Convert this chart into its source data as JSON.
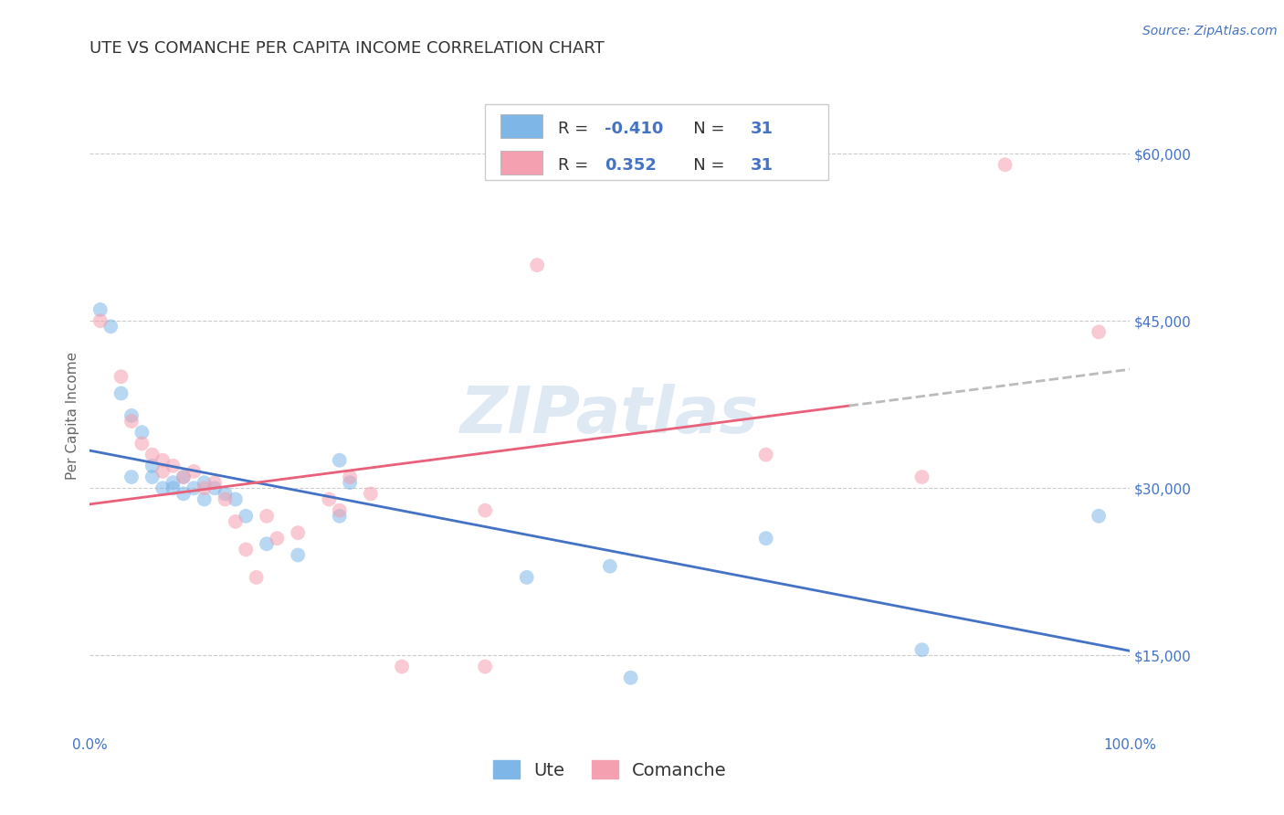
{
  "title": "UTE VS COMANCHE PER CAPITA INCOME CORRELATION CHART",
  "source": "Source: ZipAtlas.com",
  "ylabel": "Per Capita Income",
  "x_min": 0.0,
  "x_max": 1.0,
  "y_min": 8000,
  "y_max": 65000,
  "y_ticks": [
    15000,
    30000,
    45000,
    60000
  ],
  "y_tick_labels": [
    "$15,000",
    "$30,000",
    "$45,000",
    "$60,000"
  ],
  "x_tick_labels": [
    "0.0%",
    "100.0%"
  ],
  "legend_r_ute": "-0.410",
  "legend_r_comanche": "0.352",
  "legend_n": "31",
  "watermark": "ZIPatlas",
  "ute_color": "#7EB6E8",
  "comanche_color": "#F5A0B0",
  "ute_line_color": "#4472C4",
  "comanche_line_color": "#E8607A",
  "trend_line_ext_color": "#BBBBBB",
  "background_color": "#FFFFFF",
  "grid_color": "#CCCCCC",
  "ute_scatter": [
    [
      0.01,
      46000
    ],
    [
      0.02,
      44500
    ],
    [
      0.03,
      38500
    ],
    [
      0.04,
      36500
    ],
    [
      0.04,
      31000
    ],
    [
      0.05,
      35000
    ],
    [
      0.06,
      32000
    ],
    [
      0.06,
      31000
    ],
    [
      0.07,
      30000
    ],
    [
      0.08,
      30500
    ],
    [
      0.08,
      30000
    ],
    [
      0.09,
      31000
    ],
    [
      0.09,
      29500
    ],
    [
      0.1,
      30000
    ],
    [
      0.11,
      30500
    ],
    [
      0.11,
      29000
    ],
    [
      0.12,
      30000
    ],
    [
      0.13,
      29500
    ],
    [
      0.14,
      29000
    ],
    [
      0.15,
      27500
    ],
    [
      0.17,
      25000
    ],
    [
      0.2,
      24000
    ],
    [
      0.24,
      27500
    ],
    [
      0.24,
      32500
    ],
    [
      0.25,
      30500
    ],
    [
      0.42,
      22000
    ],
    [
      0.5,
      23000
    ],
    [
      0.52,
      13000
    ],
    [
      0.65,
      25500
    ],
    [
      0.8,
      15500
    ],
    [
      0.97,
      27500
    ]
  ],
  "comanche_scatter": [
    [
      0.01,
      45000
    ],
    [
      0.03,
      40000
    ],
    [
      0.04,
      36000
    ],
    [
      0.05,
      34000
    ],
    [
      0.06,
      33000
    ],
    [
      0.07,
      32500
    ],
    [
      0.07,
      31500
    ],
    [
      0.08,
      32000
    ],
    [
      0.09,
      31000
    ],
    [
      0.1,
      31500
    ],
    [
      0.11,
      30000
    ],
    [
      0.12,
      30500
    ],
    [
      0.13,
      29000
    ],
    [
      0.14,
      27000
    ],
    [
      0.15,
      24500
    ],
    [
      0.16,
      22000
    ],
    [
      0.17,
      27500
    ],
    [
      0.18,
      25500
    ],
    [
      0.2,
      26000
    ],
    [
      0.23,
      29000
    ],
    [
      0.24,
      28000
    ],
    [
      0.25,
      31000
    ],
    [
      0.27,
      29500
    ],
    [
      0.3,
      14000
    ],
    [
      0.38,
      14000
    ],
    [
      0.38,
      28000
    ],
    [
      0.43,
      50000
    ],
    [
      0.65,
      33000
    ],
    [
      0.8,
      31000
    ],
    [
      0.88,
      59000
    ],
    [
      0.97,
      44000
    ]
  ],
  "title_fontsize": 13,
  "axis_label_fontsize": 11,
  "tick_fontsize": 11,
  "legend_fontsize": 13,
  "source_fontsize": 10,
  "marker_size": 130,
  "marker_alpha": 0.55,
  "title_color": "#333333",
  "tick_color": "#4472C4",
  "source_color": "#4472C4"
}
